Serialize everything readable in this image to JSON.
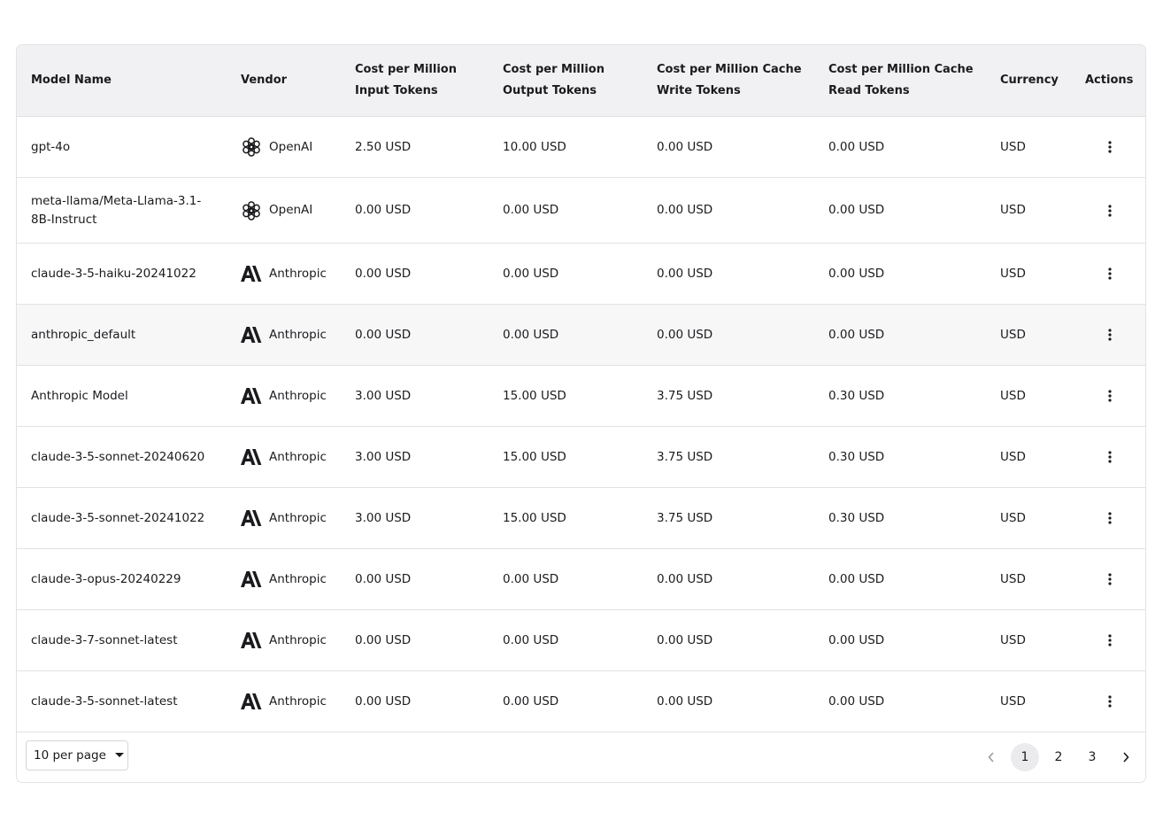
{
  "table": {
    "columns": [
      "Model Name",
      "Vendor",
      "Cost per Million Input Tokens",
      "Cost per Million Output Tokens",
      "Cost per Million Cache Write Tokens",
      "Cost per Million Cache Read Tokens",
      "Currency",
      "Actions"
    ],
    "rows": [
      [
        "gpt-4o",
        "OpenAI",
        "2.50 USD",
        "10.00 USD",
        "0.00 USD",
        "0.00 USD",
        "USD"
      ],
      [
        "meta-llama/Meta-Llama-3.1-8B-Instruct",
        "OpenAI",
        "0.00 USD",
        "0.00 USD",
        "0.00 USD",
        "0.00 USD",
        "USD"
      ],
      [
        "claude-3-5-haiku-20241022",
        "Anthropic",
        "0.00 USD",
        "0.00 USD",
        "0.00 USD",
        "0.00 USD",
        "USD"
      ],
      [
        "anthropic_default",
        "Anthropic",
        "0.00 USD",
        "0.00 USD",
        "0.00 USD",
        "0.00 USD",
        "USD"
      ],
      [
        "Anthropic Model",
        "Anthropic",
        "3.00 USD",
        "15.00 USD",
        "3.75 USD",
        "0.30 USD",
        "USD"
      ],
      [
        "claude-3-5-sonnet-20240620",
        "Anthropic",
        "3.00 USD",
        "15.00 USD",
        "3.75 USD",
        "0.30 USD",
        "USD"
      ],
      [
        "claude-3-5-sonnet-20241022",
        "Anthropic",
        "3.00 USD",
        "15.00 USD",
        "3.75 USD",
        "0.30 USD",
        "USD"
      ],
      [
        "claude-3-opus-20240229",
        "Anthropic",
        "0.00 USD",
        "0.00 USD",
        "0.00 USD",
        "0.00 USD",
        "USD"
      ],
      [
        "claude-3-7-sonnet-latest",
        "Anthropic",
        "0.00 USD",
        "0.00 USD",
        "0.00 USD",
        "0.00 USD",
        "USD"
      ],
      [
        "claude-3-5-sonnet-latest",
        "Anthropic",
        "0.00 USD",
        "0.00 USD",
        "0.00 USD",
        "0.00 USD",
        "USD"
      ]
    ]
  },
  "pagination": {
    "per_page": "10 per page",
    "pages": [
      "1",
      "2",
      "3"
    ]
  }
}
